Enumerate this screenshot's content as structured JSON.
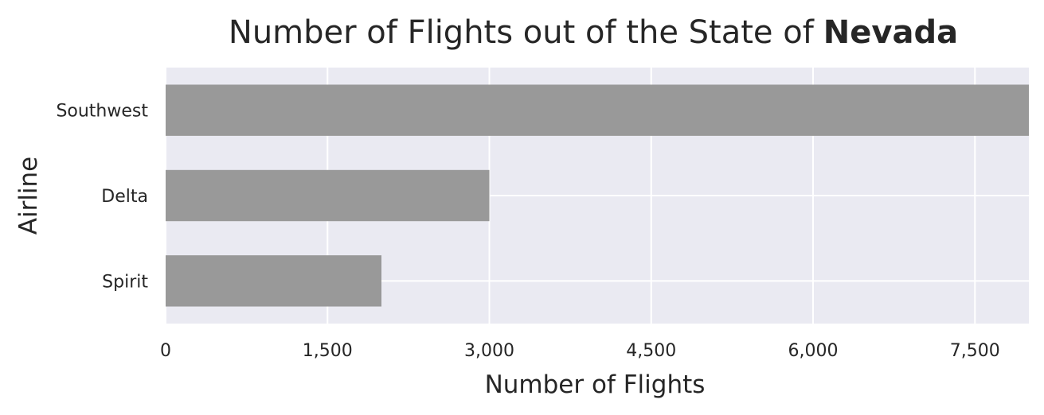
{
  "chart_data": {
    "type": "bar",
    "orientation": "horizontal",
    "title": "Number of Flights out of the State of",
    "title_emphasis": "Nevada",
    "categories": [
      "Southwest",
      "Delta",
      "Spirit"
    ],
    "values": [
      8000,
      3000,
      2000
    ],
    "xlabel": "Number of Flights",
    "ylabel": "Airline",
    "xticks": [
      0,
      1500,
      3000,
      4500,
      6000,
      7500
    ],
    "xtick_labels": [
      "0",
      "1,500",
      "3,000",
      "4,500",
      "6,000",
      "7,500"
    ],
    "xlim": [
      0,
      8000
    ],
    "grid": true,
    "legend": "none",
    "colors": {
      "bar": "#999999",
      "plot_background": "#eaeaf2",
      "grid": "#ffffff",
      "text": "#262626"
    }
  }
}
